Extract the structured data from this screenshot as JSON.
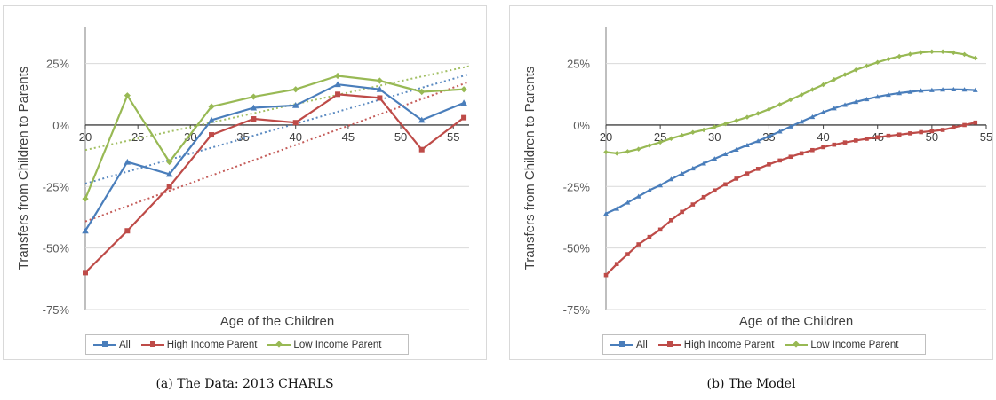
{
  "chart_data": [
    {
      "type": "line",
      "caption": "(a) The Data: 2013 CHARLS",
      "xlabel": "Age of the Children",
      "ylabel": "Transfers from Children to Parents",
      "xlim": [
        20,
        56.5
      ],
      "ylim": [
        -75,
        40
      ],
      "x_ticks": [
        "20",
        "25",
        "30",
        "35",
        "40",
        "45",
        "50",
        "55"
      ],
      "y_ticks": [
        "25%",
        "0%",
        "-25%",
        "-50%",
        "-75%"
      ],
      "y_tick_values": [
        25,
        0,
        -25,
        -50,
        -75
      ],
      "grid": true,
      "legend_position": "bottom",
      "trendlines": true,
      "series": [
        {
          "name": "All",
          "color": "#4A7EBB",
          "marker": "triangle",
          "x": [
            20,
            24,
            28,
            32,
            36,
            40,
            44,
            48,
            52,
            56
          ],
          "y": [
            -43,
            -15,
            -20,
            2,
            7,
            8,
            16.5,
            14.5,
            2,
            9
          ]
        },
        {
          "name": "High Income Parent",
          "color": "#BE4B48",
          "marker": "square",
          "x": [
            20,
            24,
            28,
            32,
            36,
            40,
            44,
            48,
            52,
            56
          ],
          "y": [
            -60,
            -43,
            -25,
            -4,
            2.5,
            1,
            12.5,
            11,
            -10,
            3
          ]
        },
        {
          "name": "Low Income Parent",
          "color": "#98B954",
          "marker": "diamond",
          "x": [
            20,
            24,
            28,
            32,
            36,
            40,
            44,
            48,
            52,
            56
          ],
          "y": [
            -30,
            12,
            -15,
            7.5,
            11.5,
            14.5,
            20,
            18,
            13.5,
            14.5
          ]
        }
      ]
    },
    {
      "type": "line",
      "caption": "(b) The Model",
      "xlabel": "Age of the Children",
      "ylabel": "Transfers from Children to Parents",
      "xlim": [
        20,
        55
      ],
      "ylim": [
        -75,
        40
      ],
      "x_ticks": [
        "20",
        "25",
        "30",
        "35",
        "40",
        "45",
        "50",
        "55"
      ],
      "y_ticks": [
        "25%",
        "0%",
        "-25%",
        "-50%",
        "-75%"
      ],
      "y_tick_values": [
        25,
        0,
        -25,
        -50,
        -75
      ],
      "grid": true,
      "legend_position": "bottom",
      "series": [
        {
          "name": "All",
          "color": "#4A7EBB",
          "marker": "triangle",
          "x": [
            20,
            21,
            22,
            23,
            24,
            25,
            26,
            27,
            28,
            29,
            30,
            31,
            32,
            33,
            34,
            35,
            36,
            37,
            38,
            39,
            40,
            41,
            42,
            43,
            44,
            45,
            46,
            47,
            48,
            49,
            50,
            51,
            52,
            53,
            54
          ],
          "y": [
            -36,
            -34,
            -31.5,
            -29,
            -26.5,
            -24.5,
            -22,
            -19.8,
            -17.6,
            -15.6,
            -13.7,
            -11.8,
            -10,
            -8.2,
            -6.5,
            -4.6,
            -2.6,
            -0.6,
            1.4,
            3.3,
            5.2,
            6.8,
            8.2,
            9.4,
            10.5,
            11.5,
            12.3,
            13,
            13.5,
            14,
            14.2,
            14.4,
            14.5,
            14.4,
            14.2
          ]
        },
        {
          "name": "High Income Parent",
          "color": "#BE4B48",
          "marker": "square",
          "x": [
            20,
            21,
            22,
            23,
            24,
            25,
            26,
            27,
            28,
            29,
            30,
            31,
            32,
            33,
            34,
            35,
            36,
            37,
            38,
            39,
            40,
            41,
            42,
            43,
            44,
            45,
            46,
            47,
            48,
            49,
            50,
            51,
            52,
            53,
            54
          ],
          "y": [
            -61,
            -56.5,
            -52.5,
            -48.5,
            -45.5,
            -42.5,
            -38.7,
            -35.3,
            -32.3,
            -29.3,
            -26.6,
            -24.1,
            -21.8,
            -19.7,
            -17.8,
            -16,
            -14.4,
            -12.9,
            -11.5,
            -10.2,
            -9,
            -8,
            -7.1,
            -6.3,
            -5.6,
            -5,
            -4.4,
            -3.9,
            -3.4,
            -2.9,
            -2.5,
            -2,
            -1,
            0,
            1
          ]
        },
        {
          "name": "Low Income Parent",
          "color": "#98B954",
          "marker": "diamond",
          "x": [
            20,
            21,
            22,
            23,
            24,
            25,
            26,
            27,
            28,
            29,
            30,
            31,
            32,
            33,
            34,
            35,
            36,
            37,
            38,
            39,
            40,
            41,
            42,
            43,
            44,
            45,
            46,
            47,
            48,
            49,
            50,
            51,
            52,
            53,
            54
          ],
          "y": [
            -11,
            -11.5,
            -10.8,
            -9.8,
            -8.3,
            -7,
            -5.5,
            -4.2,
            -3,
            -2,
            -0.8,
            0.5,
            1.8,
            3.2,
            4.7,
            6.4,
            8.3,
            10.3,
            12.3,
            14.4,
            16.4,
            18.5,
            20.5,
            22.4,
            24,
            25.5,
            26.8,
            27.9,
            28.8,
            29.5,
            29.8,
            29.8,
            29.4,
            28.7,
            27.2
          ]
        }
      ]
    }
  ]
}
